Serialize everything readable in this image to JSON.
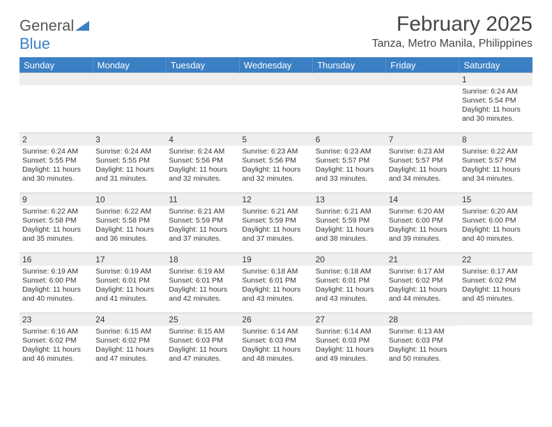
{
  "brand": {
    "part1": "General",
    "part2": "Blue"
  },
  "title": "February 2025",
  "subtitle": "Tanza, Metro Manila, Philippines",
  "colors": {
    "header_bg": "#3b7fc4",
    "header_text": "#ffffff",
    "daynum_bg": "#eeeeee",
    "grid_line": "#cfcfcf",
    "body_text": "#333333",
    "logo_blue": "#3b7fc4",
    "logo_gray": "#555555"
  },
  "weekdays": [
    "Sunday",
    "Monday",
    "Tuesday",
    "Wednesday",
    "Thursday",
    "Friday",
    "Saturday"
  ],
  "weeks": [
    [
      null,
      null,
      null,
      null,
      null,
      null,
      {
        "n": "1",
        "sr": "Sunrise: 6:24 AM",
        "ss": "Sunset: 5:54 PM",
        "dl": "Daylight: 11 hours and 30 minutes."
      }
    ],
    [
      {
        "n": "2",
        "sr": "Sunrise: 6:24 AM",
        "ss": "Sunset: 5:55 PM",
        "dl": "Daylight: 11 hours and 30 minutes."
      },
      {
        "n": "3",
        "sr": "Sunrise: 6:24 AM",
        "ss": "Sunset: 5:55 PM",
        "dl": "Daylight: 11 hours and 31 minutes."
      },
      {
        "n": "4",
        "sr": "Sunrise: 6:24 AM",
        "ss": "Sunset: 5:56 PM",
        "dl": "Daylight: 11 hours and 32 minutes."
      },
      {
        "n": "5",
        "sr": "Sunrise: 6:23 AM",
        "ss": "Sunset: 5:56 PM",
        "dl": "Daylight: 11 hours and 32 minutes."
      },
      {
        "n": "6",
        "sr": "Sunrise: 6:23 AM",
        "ss": "Sunset: 5:57 PM",
        "dl": "Daylight: 11 hours and 33 minutes."
      },
      {
        "n": "7",
        "sr": "Sunrise: 6:23 AM",
        "ss": "Sunset: 5:57 PM",
        "dl": "Daylight: 11 hours and 34 minutes."
      },
      {
        "n": "8",
        "sr": "Sunrise: 6:22 AM",
        "ss": "Sunset: 5:57 PM",
        "dl": "Daylight: 11 hours and 34 minutes."
      }
    ],
    [
      {
        "n": "9",
        "sr": "Sunrise: 6:22 AM",
        "ss": "Sunset: 5:58 PM",
        "dl": "Daylight: 11 hours and 35 minutes."
      },
      {
        "n": "10",
        "sr": "Sunrise: 6:22 AM",
        "ss": "Sunset: 5:58 PM",
        "dl": "Daylight: 11 hours and 36 minutes."
      },
      {
        "n": "11",
        "sr": "Sunrise: 6:21 AM",
        "ss": "Sunset: 5:59 PM",
        "dl": "Daylight: 11 hours and 37 minutes."
      },
      {
        "n": "12",
        "sr": "Sunrise: 6:21 AM",
        "ss": "Sunset: 5:59 PM",
        "dl": "Daylight: 11 hours and 37 minutes."
      },
      {
        "n": "13",
        "sr": "Sunrise: 6:21 AM",
        "ss": "Sunset: 5:59 PM",
        "dl": "Daylight: 11 hours and 38 minutes."
      },
      {
        "n": "14",
        "sr": "Sunrise: 6:20 AM",
        "ss": "Sunset: 6:00 PM",
        "dl": "Daylight: 11 hours and 39 minutes."
      },
      {
        "n": "15",
        "sr": "Sunrise: 6:20 AM",
        "ss": "Sunset: 6:00 PM",
        "dl": "Daylight: 11 hours and 40 minutes."
      }
    ],
    [
      {
        "n": "16",
        "sr": "Sunrise: 6:19 AM",
        "ss": "Sunset: 6:00 PM",
        "dl": "Daylight: 11 hours and 40 minutes."
      },
      {
        "n": "17",
        "sr": "Sunrise: 6:19 AM",
        "ss": "Sunset: 6:01 PM",
        "dl": "Daylight: 11 hours and 41 minutes."
      },
      {
        "n": "18",
        "sr": "Sunrise: 6:19 AM",
        "ss": "Sunset: 6:01 PM",
        "dl": "Daylight: 11 hours and 42 minutes."
      },
      {
        "n": "19",
        "sr": "Sunrise: 6:18 AM",
        "ss": "Sunset: 6:01 PM",
        "dl": "Daylight: 11 hours and 43 minutes."
      },
      {
        "n": "20",
        "sr": "Sunrise: 6:18 AM",
        "ss": "Sunset: 6:01 PM",
        "dl": "Daylight: 11 hours and 43 minutes."
      },
      {
        "n": "21",
        "sr": "Sunrise: 6:17 AM",
        "ss": "Sunset: 6:02 PM",
        "dl": "Daylight: 11 hours and 44 minutes."
      },
      {
        "n": "22",
        "sr": "Sunrise: 6:17 AM",
        "ss": "Sunset: 6:02 PM",
        "dl": "Daylight: 11 hours and 45 minutes."
      }
    ],
    [
      {
        "n": "23",
        "sr": "Sunrise: 6:16 AM",
        "ss": "Sunset: 6:02 PM",
        "dl": "Daylight: 11 hours and 46 minutes."
      },
      {
        "n": "24",
        "sr": "Sunrise: 6:15 AM",
        "ss": "Sunset: 6:02 PM",
        "dl": "Daylight: 11 hours and 47 minutes."
      },
      {
        "n": "25",
        "sr": "Sunrise: 6:15 AM",
        "ss": "Sunset: 6:03 PM",
        "dl": "Daylight: 11 hours and 47 minutes."
      },
      {
        "n": "26",
        "sr": "Sunrise: 6:14 AM",
        "ss": "Sunset: 6:03 PM",
        "dl": "Daylight: 11 hours and 48 minutes."
      },
      {
        "n": "27",
        "sr": "Sunrise: 6:14 AM",
        "ss": "Sunset: 6:03 PM",
        "dl": "Daylight: 11 hours and 49 minutes."
      },
      {
        "n": "28",
        "sr": "Sunrise: 6:13 AM",
        "ss": "Sunset: 6:03 PM",
        "dl": "Daylight: 11 hours and 50 minutes."
      },
      null
    ]
  ]
}
